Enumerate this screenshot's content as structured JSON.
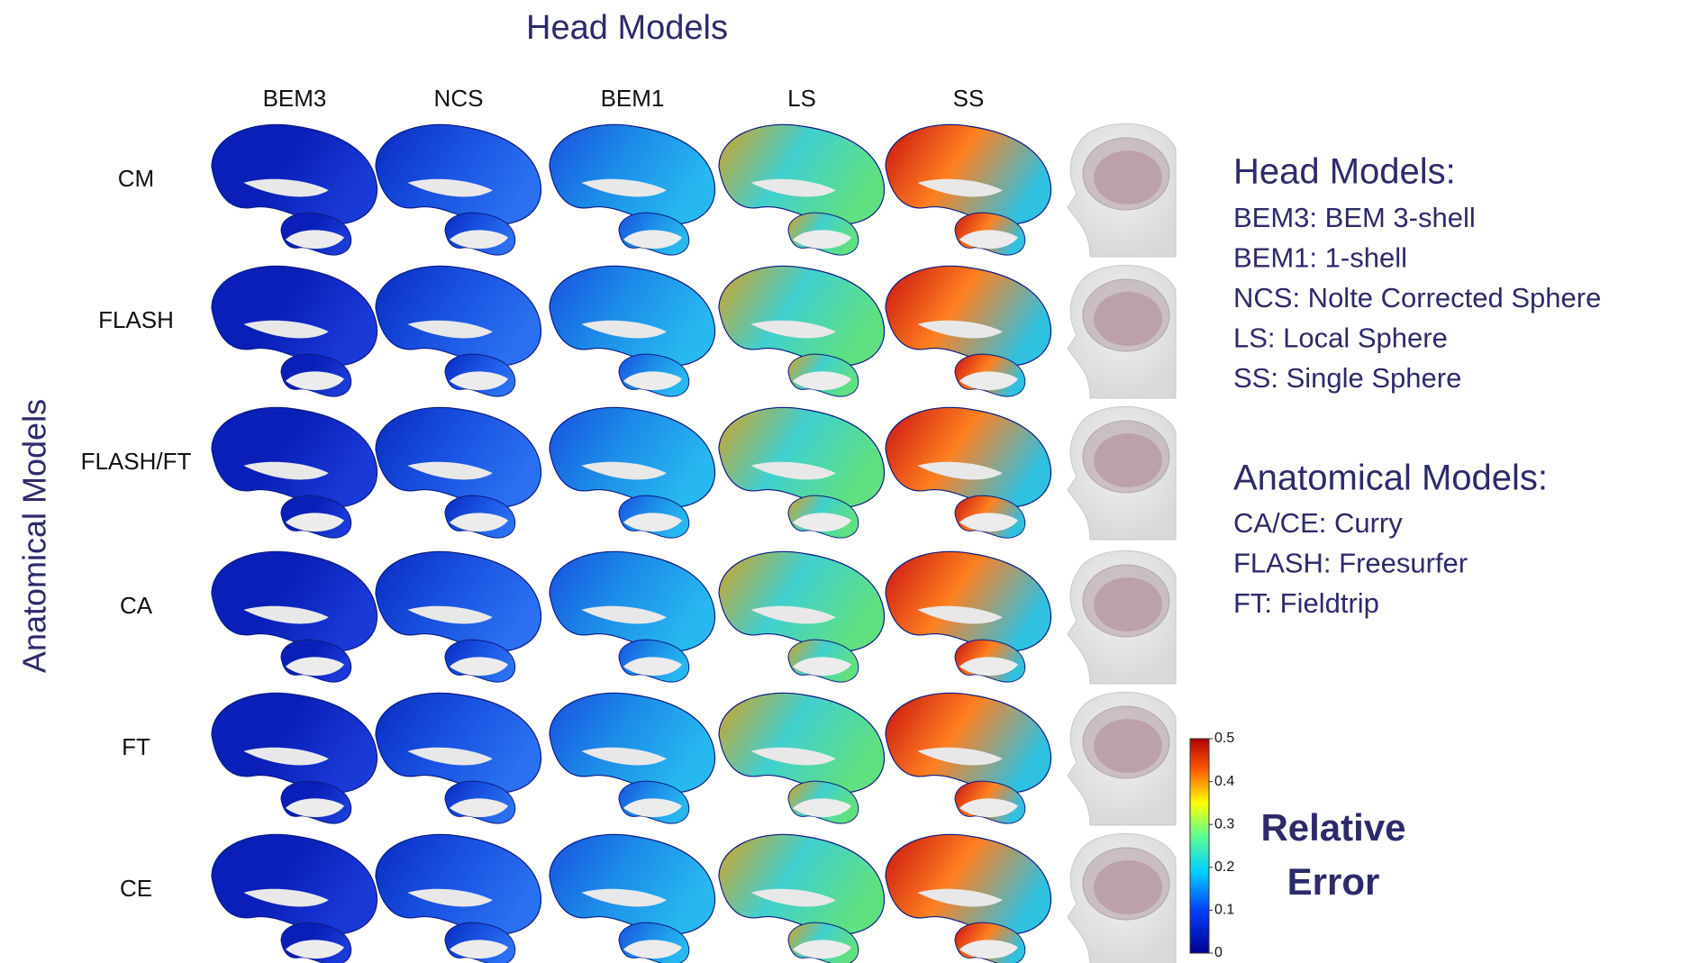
{
  "title": "Head Models",
  "y_label": "Anatomical Models",
  "columns": [
    "BEM3",
    "NCS",
    "BEM1",
    "LS",
    "SS"
  ],
  "rows": [
    "CM",
    "FLASH",
    "FLASH/FT",
    "CA",
    "FT",
    "CE"
  ],
  "legend": {
    "head_models": {
      "heading": "Head Models:",
      "items": [
        "BEM3: BEM 3-shell",
        "BEM1: 1-shell",
        "NCS: Nolte Corrected Sphere",
        "LS: Local Sphere",
        "SS: Single Sphere"
      ]
    },
    "anatomical_models": {
      "heading": "Anatomical Models:",
      "items": [
        "CA/CE: Curry",
        "FLASH: Freesurfer",
        "FT: Fieldtrip"
      ]
    }
  },
  "colorbar": {
    "lim": [
      0,
      0.5
    ],
    "ticks": [
      0,
      0.1,
      0.2,
      0.3,
      0.4,
      0.5
    ],
    "label_lines": [
      "Relative",
      "Error"
    ]
  }
}
